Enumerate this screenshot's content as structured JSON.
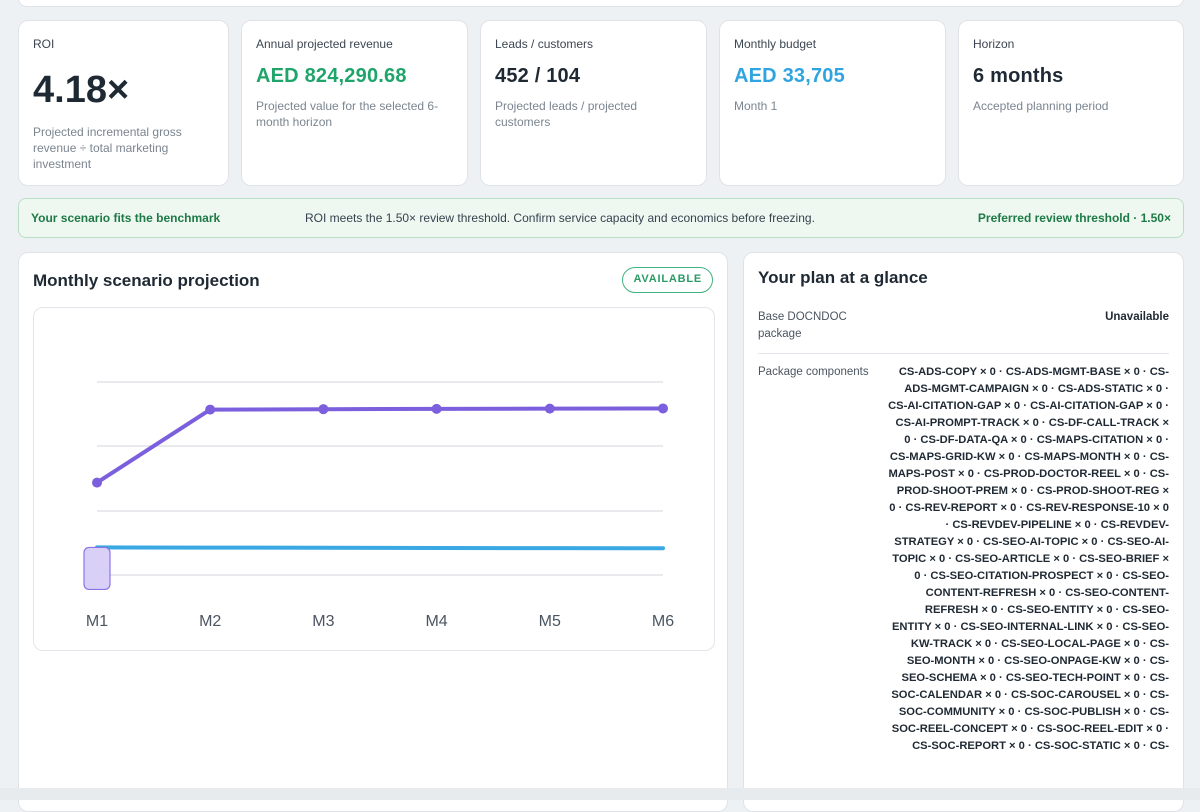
{
  "kpis": {
    "roi": {
      "label": "ROI",
      "value": "4.18×",
      "sub": "Projected incremental gross revenue ÷ total marketing investment"
    },
    "revenue": {
      "label": "Annual projected revenue",
      "value": "AED 824,290.68",
      "sub": "Projected value for the selected 6-month horizon",
      "color": "#1fa56a"
    },
    "leads": {
      "label": "Leads / customers",
      "value": "452 / 104",
      "sub": "Projected leads / projected customers"
    },
    "budget": {
      "label": "Monthly budget",
      "value": "AED 33,705",
      "sub": "Month 1",
      "color": "#2fa4e0"
    },
    "horizon": {
      "label": "Horizon",
      "value": "6 months",
      "sub": "Accepted planning period"
    }
  },
  "banner": {
    "left": "Your scenario fits the benchmark",
    "mid": "ROI meets the 1.50× review threshold. Confirm service capacity and economics before freezing.",
    "right": "Preferred review threshold · 1.50×"
  },
  "projection": {
    "title": "Monthly scenario projection",
    "badge": "AVAILABLE"
  },
  "chart_data": {
    "type": "line",
    "categories": [
      "M1",
      "M2",
      "M3",
      "M4",
      "M5",
      "M6"
    ],
    "series": [
      {
        "values": [
          0.47,
          1.0,
          1.003,
          1.005,
          1.007,
          1.008
        ],
        "color": "#7b5fdd"
      },
      {
        "values": [
          0.0,
          -0.001,
          -0.003,
          -0.004,
          -0.005,
          -0.006
        ],
        "color": "#3aa9e3"
      }
    ],
    "ylim": [
      -0.2,
      1.2
    ],
    "grid": true,
    "legend": "none"
  },
  "plan": {
    "title": "Your plan at a glance",
    "base_label": "Base DOCNDOC package",
    "base_value": "Unavailable",
    "components_label": "Package components",
    "components_value": "CS-ADS-COPY × 0 · CS-ADS-MGMT-BASE × 0 · CS-ADS-MGMT-CAMPAIGN × 0 · CS-ADS-STATIC × 0 · CS-AI-CITATION-GAP × 0 · CS-AI-CITATION-GAP × 0 · CS-AI-PROMPT-TRACK × 0 · CS-DF-CALL-TRACK × 0 · CS-DF-DATA-QA × 0 · CS-MAPS-CITATION × 0 · CS-MAPS-GRID-KW × 0 · CS-MAPS-MONTH × 0 · CS-MAPS-POST × 0 · CS-PROD-DOCTOR-REEL × 0 · CS-PROD-SHOOT-PREM × 0 · CS-PROD-SHOOT-REG × 0 · CS-REV-REPORT × 0 · CS-REV-RESPONSE-10 × 0 · CS-REVDEV-PIPELINE × 0 · CS-REVDEV-STRATEGY × 0 · CS-SEO-AI-TOPIC × 0 · CS-SEO-AI-TOPIC × 0 · CS-SEO-ARTICLE × 0 · CS-SEO-BRIEF × 0 · CS-SEO-CITATION-PROSPECT × 0 · CS-SEO-CONTENT-REFRESH × 0 · CS-SEO-CONTENT-REFRESH × 0 · CS-SEO-ENTITY × 0 · CS-SEO-ENTITY × 0 · CS-SEO-INTERNAL-LINK × 0 · CS-SEO-KW-TRACK × 0 · CS-SEO-LOCAL-PAGE × 0 · CS-SEO-MONTH × 0 · CS-SEO-ONPAGE-KW × 0 · CS-SEO-SCHEMA × 0 · CS-SEO-TECH-POINT × 0 · CS-SOC-CALENDAR × 0 · CS-SOC-CAROUSEL × 0 · CS-SOC-COMMUNITY × 0 · CS-SOC-PUBLISH × 0 · CS-SOC-REEL-CONCEPT × 0 · CS-SOC-REEL-EDIT × 0 · CS-SOC-REPORT × 0 · CS-SOC-STATIC × 0 · CS-"
  }
}
